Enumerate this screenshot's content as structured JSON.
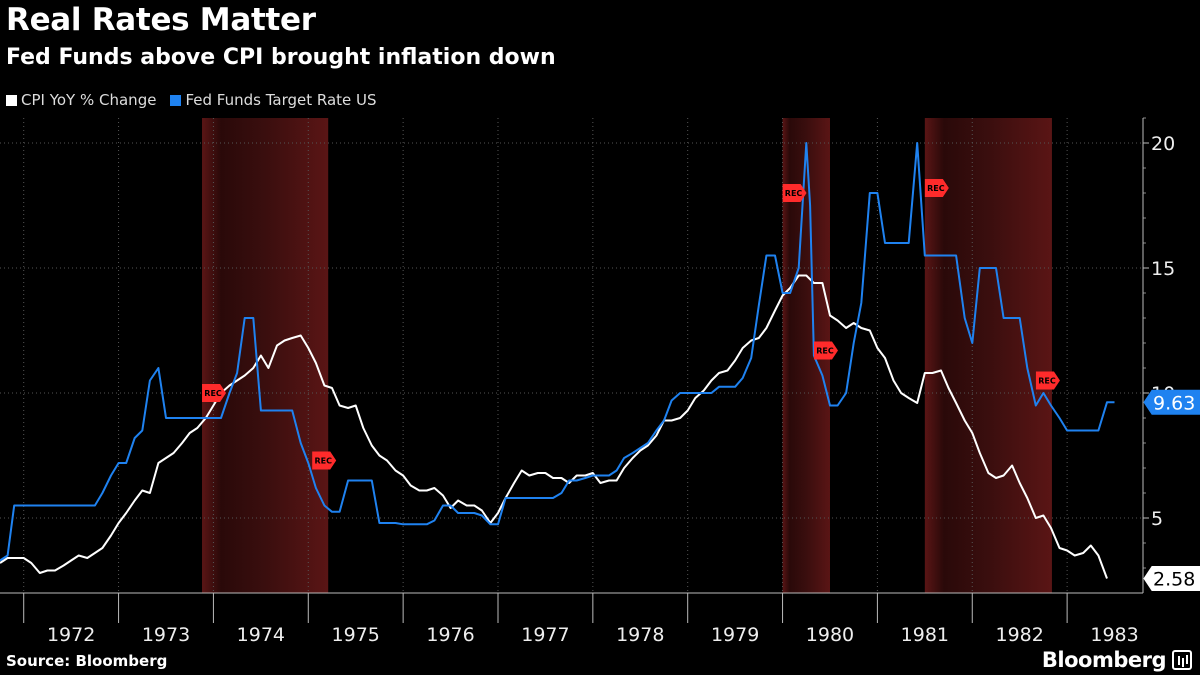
{
  "header": {
    "title": "Real Rates Matter",
    "subtitle": "Fed Funds above CPI brought inflation down"
  },
  "legend": [
    {
      "label": "CPI YoY % Change",
      "color": "#ffffff"
    },
    {
      "label": "Fed Funds Target Rate US",
      "color": "#1f82f0"
    }
  ],
  "footer": {
    "source": "Source: Bloomberg",
    "brand": "Bloomberg"
  },
  "chart_data": {
    "type": "line",
    "title": "Real Rates Matter",
    "subtitle": "Fed Funds above CPI brought inflation down",
    "x_range": [
      1971.75,
      1983.8
    ],
    "ylim": [
      2,
      21
    ],
    "y_ticks": [
      5,
      10,
      15,
      20
    ],
    "x_tick_labels": [
      "1972",
      "1973",
      "1974",
      "1975",
      "1976",
      "1977",
      "1978",
      "1979",
      "1980",
      "1981",
      "1982",
      "1983"
    ],
    "x_tick_years": [
      1972,
      1973,
      1974,
      1975,
      1976,
      1977,
      1978,
      1979,
      1980,
      1981,
      1982,
      1983
    ],
    "grid": true,
    "recessions": [
      {
        "start": 1973.88,
        "end": 1975.21,
        "label": "REC"
      },
      {
        "start": 1980.0,
        "end": 1980.5,
        "label": "REC"
      },
      {
        "start": 1981.5,
        "end": 1982.84,
        "label": "REC"
      }
    ],
    "series": [
      {
        "name": "CPI YoY % Change",
        "color": "#ffffff",
        "last_value_label": "2.58",
        "points": [
          [
            1971.75,
            3.2
          ],
          [
            1971.83,
            3.4
          ],
          [
            1972.0,
            3.4
          ],
          [
            1972.08,
            3.2
          ],
          [
            1972.17,
            2.8
          ],
          [
            1972.25,
            2.9
          ],
          [
            1972.33,
            2.9
          ],
          [
            1972.42,
            3.1
          ],
          [
            1972.5,
            3.3
          ],
          [
            1972.58,
            3.5
          ],
          [
            1972.67,
            3.4
          ],
          [
            1972.75,
            3.6
          ],
          [
            1972.83,
            3.8
          ],
          [
            1972.92,
            4.3
          ],
          [
            1973.0,
            4.8
          ],
          [
            1973.08,
            5.2
          ],
          [
            1973.17,
            5.7
          ],
          [
            1973.25,
            6.1
          ],
          [
            1973.33,
            6.0
          ],
          [
            1973.42,
            7.2
          ],
          [
            1973.5,
            7.4
          ],
          [
            1973.58,
            7.6
          ],
          [
            1973.67,
            8.0
          ],
          [
            1973.75,
            8.4
          ],
          [
            1973.83,
            8.6
          ],
          [
            1973.92,
            9.0
          ],
          [
            1974.0,
            9.5
          ],
          [
            1974.08,
            10.0
          ],
          [
            1974.17,
            10.3
          ],
          [
            1974.25,
            10.5
          ],
          [
            1974.33,
            10.7
          ],
          [
            1974.42,
            11.0
          ],
          [
            1974.5,
            11.5
          ],
          [
            1974.58,
            11.0
          ],
          [
            1974.67,
            11.9
          ],
          [
            1974.75,
            12.1
          ],
          [
            1974.83,
            12.2
          ],
          [
            1974.92,
            12.3
          ],
          [
            1975.0,
            11.8
          ],
          [
            1975.08,
            11.2
          ],
          [
            1975.17,
            10.3
          ],
          [
            1975.25,
            10.2
          ],
          [
            1975.33,
            9.5
          ],
          [
            1975.42,
            9.4
          ],
          [
            1975.5,
            9.5
          ],
          [
            1975.58,
            8.6
          ],
          [
            1975.67,
            7.9
          ],
          [
            1975.75,
            7.5
          ],
          [
            1975.83,
            7.3
          ],
          [
            1975.92,
            6.9
          ],
          [
            1976.0,
            6.7
          ],
          [
            1976.08,
            6.3
          ],
          [
            1976.17,
            6.1
          ],
          [
            1976.25,
            6.1
          ],
          [
            1976.33,
            6.2
          ],
          [
            1976.42,
            5.9
          ],
          [
            1976.5,
            5.4
          ],
          [
            1976.58,
            5.7
          ],
          [
            1976.67,
            5.5
          ],
          [
            1976.75,
            5.5
          ],
          [
            1976.83,
            5.3
          ],
          [
            1976.92,
            4.8
          ],
          [
            1977.0,
            5.2
          ],
          [
            1977.08,
            5.8
          ],
          [
            1977.17,
            6.4
          ],
          [
            1977.25,
            6.9
          ],
          [
            1977.33,
            6.7
          ],
          [
            1977.42,
            6.8
          ],
          [
            1977.5,
            6.8
          ],
          [
            1977.58,
            6.6
          ],
          [
            1977.67,
            6.6
          ],
          [
            1977.75,
            6.4
          ],
          [
            1977.83,
            6.7
          ],
          [
            1977.92,
            6.7
          ],
          [
            1978.0,
            6.8
          ],
          [
            1978.08,
            6.4
          ],
          [
            1978.17,
            6.5
          ],
          [
            1978.25,
            6.5
          ],
          [
            1978.33,
            7.0
          ],
          [
            1978.42,
            7.4
          ],
          [
            1978.5,
            7.7
          ],
          [
            1978.58,
            7.9
          ],
          [
            1978.67,
            8.3
          ],
          [
            1978.75,
            8.9
          ],
          [
            1978.83,
            8.9
          ],
          [
            1978.92,
            9.0
          ],
          [
            1979.0,
            9.3
          ],
          [
            1979.08,
            9.8
          ],
          [
            1979.17,
            10.1
          ],
          [
            1979.25,
            10.5
          ],
          [
            1979.33,
            10.8
          ],
          [
            1979.42,
            10.9
          ],
          [
            1979.5,
            11.3
          ],
          [
            1979.58,
            11.8
          ],
          [
            1979.67,
            12.1
          ],
          [
            1979.75,
            12.2
          ],
          [
            1979.83,
            12.6
          ],
          [
            1979.92,
            13.3
          ],
          [
            1980.0,
            13.9
          ],
          [
            1980.08,
            14.2
          ],
          [
            1980.17,
            14.7
          ],
          [
            1980.25,
            14.7
          ],
          [
            1980.33,
            14.4
          ],
          [
            1980.42,
            14.4
          ],
          [
            1980.5,
            13.1
          ],
          [
            1980.58,
            12.9
          ],
          [
            1980.67,
            12.6
          ],
          [
            1980.75,
            12.8
          ],
          [
            1980.83,
            12.6
          ],
          [
            1980.92,
            12.5
          ],
          [
            1981.0,
            11.8
          ],
          [
            1981.08,
            11.4
          ],
          [
            1981.17,
            10.5
          ],
          [
            1981.25,
            10.0
          ],
          [
            1981.33,
            9.8
          ],
          [
            1981.42,
            9.6
          ],
          [
            1981.5,
            10.8
          ],
          [
            1981.58,
            10.8
          ],
          [
            1981.67,
            10.9
          ],
          [
            1981.75,
            10.2
          ],
          [
            1981.83,
            9.6
          ],
          [
            1981.92,
            8.9
          ],
          [
            1982.0,
            8.4
          ],
          [
            1982.08,
            7.6
          ],
          [
            1982.17,
            6.8
          ],
          [
            1982.25,
            6.6
          ],
          [
            1982.33,
            6.7
          ],
          [
            1982.42,
            7.1
          ],
          [
            1982.5,
            6.4
          ],
          [
            1982.58,
            5.8
          ],
          [
            1982.67,
            5.0
          ],
          [
            1982.75,
            5.1
          ],
          [
            1982.83,
            4.6
          ],
          [
            1982.92,
            3.8
          ],
          [
            1983.0,
            3.7
          ],
          [
            1983.08,
            3.5
          ],
          [
            1983.17,
            3.6
          ],
          [
            1983.25,
            3.9
          ],
          [
            1983.33,
            3.5
          ],
          [
            1983.42,
            2.58
          ]
        ]
      },
      {
        "name": "Fed Funds Target Rate US",
        "color": "#1f82f0",
        "last_value_label": "9.63",
        "points": [
          [
            1971.75,
            3.3
          ],
          [
            1971.83,
            3.5
          ],
          [
            1971.9,
            5.5
          ],
          [
            1972.0,
            5.5
          ],
          [
            1972.5,
            5.5
          ],
          [
            1972.75,
            5.5
          ],
          [
            1972.83,
            6.0
          ],
          [
            1972.92,
            6.7
          ],
          [
            1973.0,
            7.2
          ],
          [
            1973.08,
            7.2
          ],
          [
            1973.17,
            8.2
          ],
          [
            1973.25,
            8.5
          ],
          [
            1973.33,
            10.5
          ],
          [
            1973.42,
            11.0
          ],
          [
            1973.5,
            9.0
          ],
          [
            1973.67,
            9.0
          ],
          [
            1973.83,
            9.0
          ],
          [
            1974.08,
            9.0
          ],
          [
            1974.17,
            10.0
          ],
          [
            1974.25,
            10.8
          ],
          [
            1974.33,
            13.0
          ],
          [
            1974.42,
            13.0
          ],
          [
            1974.5,
            9.3
          ],
          [
            1974.83,
            9.3
          ],
          [
            1974.92,
            8.0
          ],
          [
            1975.0,
            7.2
          ],
          [
            1975.08,
            6.2
          ],
          [
            1975.17,
            5.5
          ],
          [
            1975.25,
            5.25
          ],
          [
            1975.33,
            5.25
          ],
          [
            1975.42,
            6.5
          ],
          [
            1975.67,
            6.5
          ],
          [
            1975.75,
            4.8
          ],
          [
            1975.92,
            4.8
          ],
          [
            1976.0,
            4.75
          ],
          [
            1976.25,
            4.75
          ],
          [
            1976.33,
            4.9
          ],
          [
            1976.42,
            5.5
          ],
          [
            1976.5,
            5.5
          ],
          [
            1976.58,
            5.2
          ],
          [
            1976.75,
            5.2
          ],
          [
            1976.83,
            5.1
          ],
          [
            1976.92,
            4.75
          ],
          [
            1977.0,
            4.75
          ],
          [
            1977.08,
            5.8
          ],
          [
            1977.42,
            5.8
          ],
          [
            1977.58,
            5.8
          ],
          [
            1977.67,
            6.0
          ],
          [
            1977.75,
            6.5
          ],
          [
            1977.83,
            6.5
          ],
          [
            1977.92,
            6.6
          ],
          [
            1978.0,
            6.7
          ],
          [
            1978.17,
            6.7
          ],
          [
            1978.25,
            6.9
          ],
          [
            1978.33,
            7.4
          ],
          [
            1978.42,
            7.6
          ],
          [
            1978.5,
            7.8
          ],
          [
            1978.58,
            8.0
          ],
          [
            1978.67,
            8.5
          ],
          [
            1978.75,
            8.9
          ],
          [
            1978.83,
            9.7
          ],
          [
            1978.92,
            10.0
          ],
          [
            1979.0,
            10.0
          ],
          [
            1979.25,
            10.0
          ],
          [
            1979.33,
            10.25
          ],
          [
            1979.5,
            10.25
          ],
          [
            1979.58,
            10.6
          ],
          [
            1979.67,
            11.4
          ],
          [
            1979.75,
            13.5
          ],
          [
            1979.83,
            15.5
          ],
          [
            1979.92,
            15.5
          ],
          [
            1980.0,
            14.0
          ],
          [
            1980.08,
            14.0
          ],
          [
            1980.17,
            15.0
          ],
          [
            1980.25,
            20.0
          ],
          [
            1980.29,
            17.5
          ],
          [
            1980.33,
            11.5
          ],
          [
            1980.42,
            10.7
          ],
          [
            1980.5,
            9.5
          ],
          [
            1980.58,
            9.5
          ],
          [
            1980.67,
            10.0
          ],
          [
            1980.75,
            12.0
          ],
          [
            1980.83,
            13.6
          ],
          [
            1980.92,
            18.0
          ],
          [
            1981.0,
            18.0
          ],
          [
            1981.08,
            16.0
          ],
          [
            1981.17,
            16.0
          ],
          [
            1981.33,
            16.0
          ],
          [
            1981.42,
            20.0
          ],
          [
            1981.5,
            15.5
          ],
          [
            1981.67,
            15.5
          ],
          [
            1981.83,
            15.5
          ],
          [
            1981.92,
            13.0
          ],
          [
            1982.0,
            12.0
          ],
          [
            1982.08,
            15.0
          ],
          [
            1982.25,
            15.0
          ],
          [
            1982.33,
            13.0
          ],
          [
            1982.5,
            13.0
          ],
          [
            1982.58,
            11.0
          ],
          [
            1982.67,
            9.5
          ],
          [
            1982.75,
            10.0
          ],
          [
            1982.83,
            9.5
          ],
          [
            1982.92,
            9.0
          ],
          [
            1983.0,
            8.5
          ],
          [
            1983.33,
            8.5
          ],
          [
            1983.42,
            9.63
          ],
          [
            1983.5,
            9.63
          ]
        ]
      }
    ]
  }
}
